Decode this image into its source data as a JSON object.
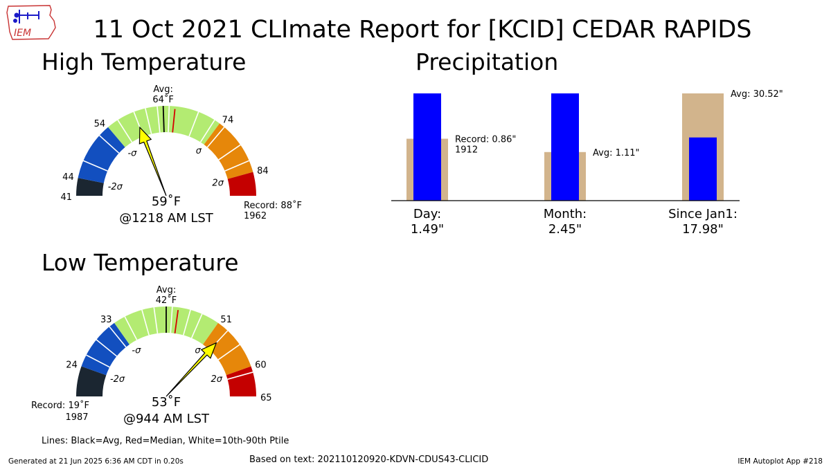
{
  "header": {
    "title": "11 Oct 2021 CLImate Report for [KCID] CEDAR RAPIDS",
    "logo_text": "IEM"
  },
  "footer": {
    "generated": "Generated at 21 Jun 2025 6:36 AM CDT in 0.20s",
    "based_on": "Based on text: 202110120920-KDVN-CDUS43-CLICID",
    "app": "IEM Autoplot App #218",
    "lines_legend": "Lines: Black=Avg, Red=Median, White=10th-90th Ptile"
  },
  "colors": {
    "extreme_low": "#1b2631",
    "low": "#124fbf",
    "normal": "#b3eb72",
    "high": "#e6870a",
    "extreme_high": "#c40000",
    "needle": "#ffff00",
    "precip_avg": "#d2b48c",
    "precip_obs": "#0000ff",
    "avg_line": "#000000",
    "median_line": "#d40000",
    "ptile_line": "#ffffff"
  },
  "chart_data": [
    {
      "type": "gauge",
      "title": "High Temperature",
      "min": 41,
      "max": 88,
      "zone_edges": [
        41,
        44,
        54,
        74,
        84,
        88
      ],
      "zone_colors": [
        "extreme_low",
        "low",
        "normal",
        "high",
        "extreme_high"
      ],
      "tick_labels": [
        "41",
        "44",
        "54",
        "74",
        "84"
      ],
      "sigma_labels": [
        "-2σ",
        "-σ",
        "σ",
        "2σ"
      ],
      "avg": 64,
      "avg_label": "Avg:",
      "avg_value_label": "64$^\\circ$F",
      "avg_value_text": "64˚F",
      "median": 66,
      "ptile_lines": [
        47,
        52,
        56,
        59,
        61,
        63,
        65,
        70,
        73,
        75,
        79,
        82
      ],
      "needle_value": 59,
      "value_text": "59˚F",
      "time_text": "@1218 AM LST",
      "record_text": "Record: 88˚F",
      "record_year": "1962",
      "record_side": "right"
    },
    {
      "type": "gauge",
      "title": "Low Temperature",
      "min": 19,
      "max": 65,
      "zone_edges": [
        19,
        24,
        33,
        51,
        60,
        65
      ],
      "zone_colors": [
        "extreme_low",
        "low",
        "normal",
        "high",
        "extreme_high"
      ],
      "tick_labels": [
        "24",
        "33",
        "51",
        "60",
        "65"
      ],
      "sigma_labels": [
        "-2σ",
        "-σ",
        "σ",
        "2σ"
      ],
      "avg": 42,
      "avg_label": "Avg:",
      "avg_value_text": "42˚F",
      "median": 44,
      "ptile_lines": [
        26,
        29,
        32,
        35,
        38,
        40,
        43,
        46,
        48,
        53,
        56,
        61
      ],
      "needle_value": 53,
      "value_text": "53˚F",
      "time_text": "@944 AM LST",
      "record_text": "Record: 19˚F",
      "record_year": "1987",
      "record_side": "left"
    },
    {
      "type": "bar",
      "title": "Precipitation",
      "categories": [
        "Day:",
        "Month:",
        "Since Jan1:"
      ],
      "observed": [
        1.49,
        2.45,
        17.98
      ],
      "observed_labels": [
        "1.49\"",
        "2.45\"",
        "17.98\""
      ],
      "reference": [
        0.86,
        1.11,
        30.52
      ],
      "reference_kind": [
        "record",
        "avg",
        "avg"
      ],
      "annotations": [
        {
          "line1": "Record: 0.86\"",
          "line2": "1912"
        },
        {
          "line1": "Avg: 1.11\"",
          "line2": ""
        },
        {
          "line1": "Avg: 30.52\"",
          "line2": ""
        }
      ]
    }
  ]
}
